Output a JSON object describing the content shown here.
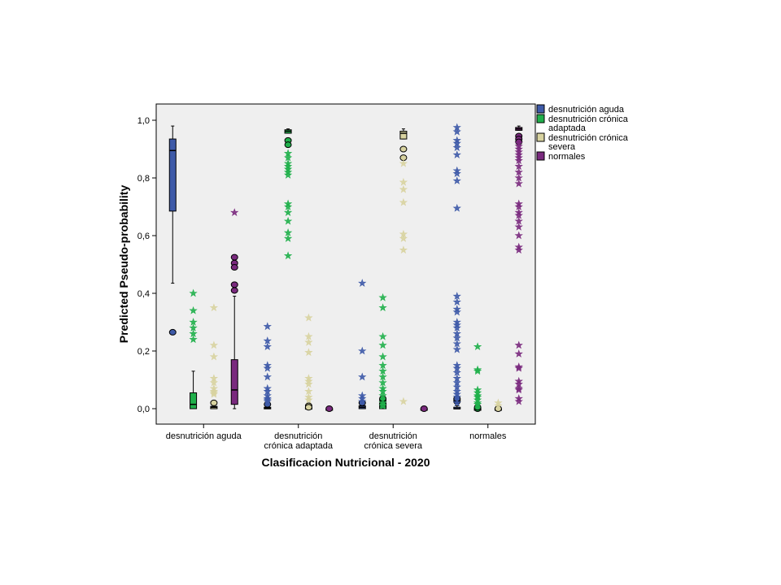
{
  "chart_data": {
    "type": "boxplot",
    "xlabel": "Clasificacion Nutricional - 2020",
    "ylabel": "Predicted Pseudo-probability",
    "ylim": [
      0,
      1.03
    ],
    "yticks": [
      "0,0",
      "0,2",
      "0,4",
      "0,6",
      "0,8",
      "1,0"
    ],
    "ytick_values": [
      0,
      0.2,
      0.4,
      0.6,
      0.8,
      1.0
    ],
    "grid": false,
    "legend_position": "right",
    "categories": [
      [
        "desnutrición aguda"
      ],
      [
        "desnutrición",
        "crónica adaptada"
      ],
      [
        "desnutrición",
        "crónica severa"
      ],
      [
        "normales"
      ]
    ],
    "series": [
      {
        "name": [
          "desnutrición aguda"
        ],
        "color": "#3e5aa8"
      },
      {
        "name": [
          "desnutrición crónica",
          "adaptada"
        ],
        "color": "#20b04b"
      },
      {
        "name": [
          "desnutrición crónica",
          "severa"
        ],
        "color": "#d8d3a0"
      },
      {
        "name": [
          "normales"
        ],
        "color": "#7a2a7e"
      }
    ],
    "boxes": [
      [
        {
          "whisker_low": 0.435,
          "q1": 0.685,
          "median": 0.895,
          "q3": 0.935,
          "whisker_high": 0.98,
          "outliers": [
            0.265
          ],
          "extremes": []
        },
        {
          "whisker_low": 0.0,
          "q1": 0.0,
          "median": 0.015,
          "q3": 0.055,
          "whisker_high": 0.13,
          "outliers": [],
          "extremes": [
            0.4,
            0.34,
            0.3,
            0.28,
            0.26,
            0.24
          ]
        },
        {
          "whisker_low": 0.0,
          "q1": 0.0,
          "median": 0.005,
          "q3": 0.008,
          "whisker_high": 0.012,
          "outliers": [
            0.02
          ],
          "extremes": [
            0.35,
            0.22,
            0.18,
            0.105,
            0.09,
            0.07,
            0.06,
            0.055,
            0.05
          ]
        },
        {
          "whisker_low": 0.0,
          "q1": 0.015,
          "median": 0.065,
          "q3": 0.17,
          "whisker_high": 0.39,
          "outliers": [
            0.525,
            0.505,
            0.49,
            0.43,
            0.41
          ],
          "extremes": [
            0.68
          ]
        }
      ],
      [
        {
          "whisker_low": 0.0,
          "q1": 0.0,
          "median": 0.002,
          "q3": 0.005,
          "whisker_high": 0.01,
          "outliers": [
            0.015
          ],
          "extremes": [
            0.285,
            0.235,
            0.215,
            0.15,
            0.14,
            0.11,
            0.07,
            0.06,
            0.045,
            0.035,
            0.03,
            0.025
          ]
        },
        {
          "whisker_low": 0.955,
          "q1": 0.955,
          "median": 0.962,
          "q3": 0.967,
          "whisker_high": 0.97,
          "outliers": [
            0.93,
            0.915
          ],
          "extremes": [
            0.885,
            0.87,
            0.85,
            0.84,
            0.83,
            0.82,
            0.81,
            0.71,
            0.7,
            0.68,
            0.65,
            0.61,
            0.59,
            0.53
          ]
        },
        {
          "whisker_low": 0.0,
          "q1": 0.0,
          "median": 0.002,
          "q3": 0.004,
          "whisker_high": 0.006,
          "outliers": [
            0.01,
            0.005
          ],
          "extremes": [
            0.315,
            0.25,
            0.23,
            0.195,
            0.105,
            0.095,
            0.085,
            0.06,
            0.04,
            0.03
          ]
        },
        {
          "whisker_low": 0.0,
          "q1": 0.0,
          "median": 0.0,
          "q3": 0.0,
          "whisker_high": 0.0,
          "outliers": [
            0.0
          ],
          "extremes": []
        }
      ],
      [
        {
          "whisker_low": 0.0,
          "q1": 0.0,
          "median": 0.005,
          "q3": 0.01,
          "whisker_high": 0.015,
          "outliers": [
            0.02
          ],
          "extremes": [
            0.435,
            0.2,
            0.11,
            0.045,
            0.035,
            0.025
          ]
        },
        {
          "whisker_low": 0.0,
          "q1": 0.0,
          "median": 0.01,
          "q3": 0.02,
          "whisker_high": 0.025,
          "outliers": [
            0.03,
            0.035
          ],
          "extremes": [
            0.385,
            0.35,
            0.25,
            0.22,
            0.18,
            0.15,
            0.13,
            0.11,
            0.09,
            0.07,
            0.06,
            0.045,
            0.02,
            0.01
          ]
        },
        {
          "whisker_low": 0.935,
          "q1": 0.935,
          "median": 0.955,
          "q3": 0.962,
          "whisker_high": 0.97,
          "outliers": [
            0.9,
            0.87
          ],
          "extremes": [
            0.85,
            0.785,
            0.76,
            0.715,
            0.605,
            0.59,
            0.55,
            0.025
          ]
        },
        {
          "whisker_low": 0.0,
          "q1": 0.0,
          "median": 0.0,
          "q3": 0.0,
          "whisker_high": 0.0,
          "outliers": [
            0.0
          ],
          "extremes": []
        }
      ],
      [
        {
          "whisker_low": 0.0,
          "q1": 0.0,
          "median": 0.0,
          "q3": 0.005,
          "whisker_high": 0.01,
          "outliers": [
            0.025,
            0.03,
            0.035
          ],
          "extremes": [
            0.975,
            0.96,
            0.93,
            0.92,
            0.905,
            0.88,
            0.825,
            0.815,
            0.79,
            0.695,
            0.39,
            0.37,
            0.345,
            0.335,
            0.3,
            0.29,
            0.28,
            0.26,
            0.245,
            0.225,
            0.205,
            0.15,
            0.14,
            0.125,
            0.105,
            0.09,
            0.075,
            0.06,
            0.05,
            0.04,
            0.02
          ]
        },
        {
          "whisker_low": 0.0,
          "q1": 0.0,
          "median": 0.0,
          "q3": 0.0,
          "whisker_high": 0.0,
          "outliers": [
            0.0,
            0.005
          ],
          "extremes": [
            0.215,
            0.135,
            0.13,
            0.065,
            0.055,
            0.045,
            0.04,
            0.03,
            0.02,
            0.015
          ]
        },
        {
          "whisker_low": 0.0,
          "q1": 0.0,
          "median": 0.0,
          "q3": 0.0,
          "whisker_high": 0.0,
          "outliers": [
            0.0
          ],
          "extremes": [
            0.02,
            0.01
          ]
        },
        {
          "whisker_low": 0.965,
          "q1": 0.965,
          "median": 0.97,
          "q3": 0.975,
          "whisker_high": 0.98,
          "outliers": [
            0.945,
            0.935,
            0.925
          ],
          "extremes": [
            0.92,
            0.91,
            0.9,
            0.89,
            0.88,
            0.87,
            0.86,
            0.84,
            0.82,
            0.8,
            0.78,
            0.71,
            0.7,
            0.68,
            0.67,
            0.65,
            0.63,
            0.6,
            0.56,
            0.55,
            0.22,
            0.19,
            0.145,
            0.14,
            0.095,
            0.085,
            0.07,
            0.065,
            0.035,
            0.025
          ]
        }
      ]
    ]
  }
}
